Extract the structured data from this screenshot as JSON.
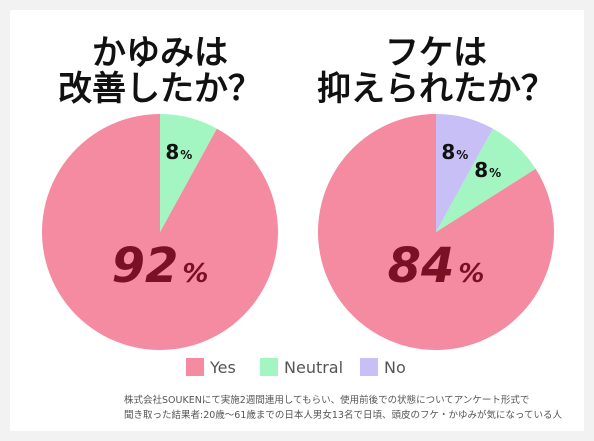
{
  "chart_data": [
    {
      "type": "pie",
      "title": "かゆみは\n改善したか？",
      "slices": [
        {
          "label": "Yes",
          "value": 92,
          "display": "92"
        },
        {
          "label": "Neutral",
          "value": 8,
          "display": "8"
        }
      ]
    },
    {
      "type": "pie",
      "title": "フケは\n抑えられたか？",
      "slices": [
        {
          "label": "Yes",
          "value": 84,
          "display": "84"
        },
        {
          "label": "Neutral",
          "value": 8,
          "display": "8"
        },
        {
          "label": "No",
          "value": 8,
          "display": "8"
        }
      ]
    }
  ],
  "percent_sign": "%",
  "legend": [
    {
      "label": "Yes",
      "color": "#f48ba0"
    },
    {
      "label": "Neutral",
      "color": "#a3f5c2"
    },
    {
      "label": "No",
      "color": "#c7bff5"
    }
  ],
  "colors": {
    "yes": "#f48ba0",
    "neutral": "#a3f5c2",
    "no": "#c7bff5",
    "big_label": "#7a1024",
    "small_label": "#111111"
  },
  "footnote": {
    "line1": "株式会社SOUKENにて実施2週間連用してもらい、使用前後での状態についてアンケート形式で",
    "line2": "聞き取った結果者:20歳〜61歳までの日本人男女13名で日頃、頭皮のフケ・かゆみが気になっている人"
  }
}
